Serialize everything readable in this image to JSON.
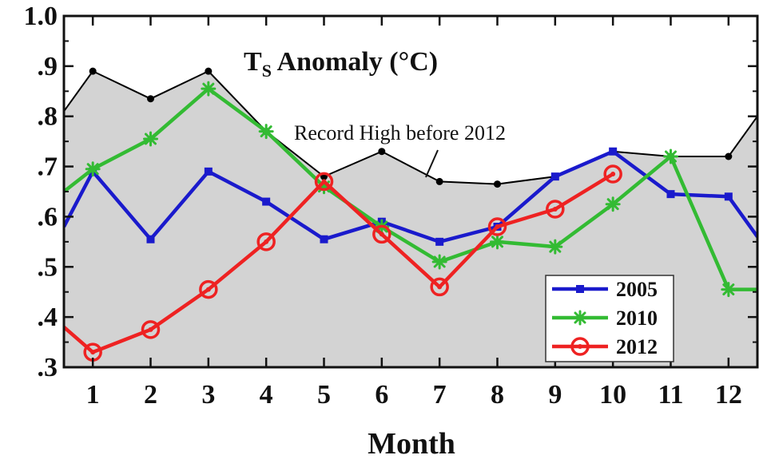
{
  "chart_data": {
    "type": "line",
    "title_main": "T",
    "title_sub": "S",
    "title_rest": " Anomaly (°C)",
    "xlabel": "Month",
    "ylabel": "",
    "x": [
      0.5,
      1,
      2,
      3,
      4,
      5,
      6,
      7,
      8,
      9,
      10,
      11,
      12,
      12.5
    ],
    "xlim": [
      0.5,
      12.5
    ],
    "ylim": [
      0.3,
      1.0
    ],
    "x_ticks": [
      {
        "value": 1,
        "label": "1"
      },
      {
        "value": 2,
        "label": "2"
      },
      {
        "value": 3,
        "label": "3"
      },
      {
        "value": 4,
        "label": "4"
      },
      {
        "value": 5,
        "label": "5"
      },
      {
        "value": 6,
        "label": "6"
      },
      {
        "value": 7,
        "label": "7"
      },
      {
        "value": 8,
        "label": "8"
      },
      {
        "value": 9,
        "label": "9"
      },
      {
        "value": 10,
        "label": "10"
      },
      {
        "value": 11,
        "label": "11"
      },
      {
        "value": 12,
        "label": "12"
      }
    ],
    "y_ticks": [
      {
        "value": 0.3,
        "label": ".3"
      },
      {
        "value": 0.4,
        "label": ".4"
      },
      {
        "value": 0.5,
        "label": ".5"
      },
      {
        "value": 0.6,
        "label": ".6"
      },
      {
        "value": 0.7,
        "label": ".7"
      },
      {
        "value": 0.8,
        "label": ".8"
      },
      {
        "value": 0.9,
        "label": ".9"
      },
      {
        "value": 1.0,
        "label": "1.0"
      }
    ],
    "record_high": {
      "label": "Record High before 2012",
      "x": [
        0.5,
        1,
        2,
        3,
        4,
        5,
        6,
        7,
        8,
        9,
        10,
        11,
        12,
        12.5
      ],
      "values": [
        0.81,
        0.89,
        0.835,
        0.89,
        0.77,
        0.68,
        0.73,
        0.67,
        0.665,
        0.68,
        0.73,
        0.72,
        0.72,
        0.8
      ],
      "color": "#000000",
      "fill": "#d3d3d3"
    },
    "series": [
      {
        "name": "2005",
        "color": "#1a1acc",
        "marker": "square",
        "x": [
          0.5,
          1,
          2,
          3,
          4,
          5,
          6,
          7,
          8,
          9,
          10,
          11,
          12,
          12.5
        ],
        "values": [
          0.58,
          0.69,
          0.555,
          0.69,
          0.63,
          0.555,
          0.59,
          0.55,
          0.58,
          0.68,
          0.73,
          0.645,
          0.64,
          0.56
        ]
      },
      {
        "name": "2010",
        "color": "#33bb33",
        "marker": "star",
        "x": [
          0.5,
          1,
          2,
          3,
          4,
          5,
          6,
          7,
          8,
          9,
          10,
          11,
          12,
          12.5
        ],
        "values": [
          0.65,
          0.695,
          0.755,
          0.855,
          0.77,
          0.66,
          0.58,
          0.51,
          0.55,
          0.54,
          0.625,
          0.72,
          0.455,
          0.455
        ]
      },
      {
        "name": "2012",
        "color": "#ee2222",
        "marker": "circle",
        "x": [
          0.5,
          1,
          2,
          3,
          4,
          5,
          6,
          7,
          8,
          9,
          10
        ],
        "values": [
          0.38,
          0.33,
          0.375,
          0.455,
          0.55,
          0.67,
          0.565,
          0.46,
          0.58,
          0.615,
          0.685
        ]
      }
    ],
    "legend": {
      "entries": [
        "2005",
        "2010",
        "2012"
      ],
      "position": "bottom-right"
    },
    "grid": false
  }
}
